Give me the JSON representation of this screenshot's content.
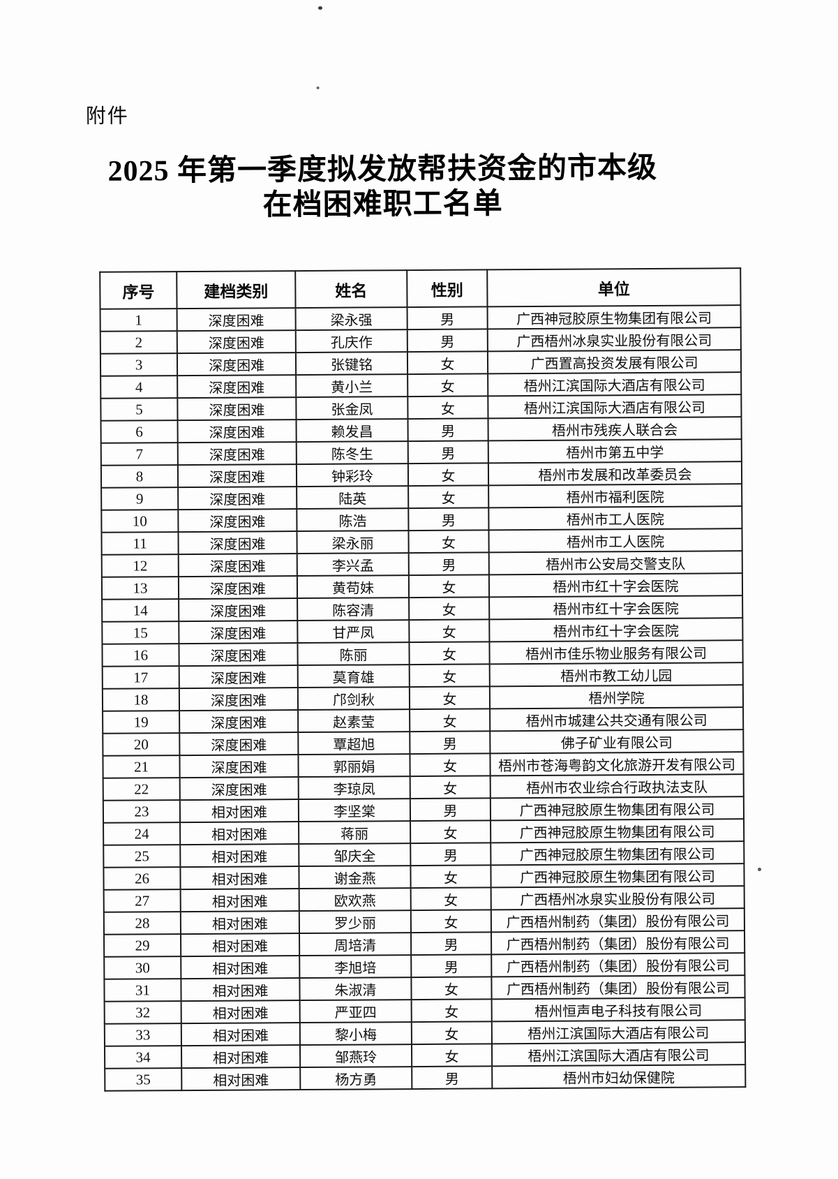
{
  "document": {
    "attachment_label": "附件",
    "title_line1": "2025 年第一季度拟发放帮扶资金的市本级",
    "title_line2": "在档困难职工名单"
  },
  "table": {
    "headers": [
      "序号",
      "建档类别",
      "姓名",
      "性别",
      "单位"
    ],
    "rows": [
      [
        "1",
        "深度困难",
        "梁永强",
        "男",
        "广西神冠胶原生物集团有限公司"
      ],
      [
        "2",
        "深度困难",
        "孔庆作",
        "男",
        "广西梧州冰泉实业股份有限公司"
      ],
      [
        "3",
        "深度困难",
        "张键铭",
        "女",
        "广西置高投资发展有限公司"
      ],
      [
        "4",
        "深度困难",
        "黄小兰",
        "女",
        "梧州江滨国际大酒店有限公司"
      ],
      [
        "5",
        "深度困难",
        "张金凤",
        "女",
        "梧州江滨国际大酒店有限公司"
      ],
      [
        "6",
        "深度困难",
        "赖发昌",
        "男",
        "梧州市残疾人联合会"
      ],
      [
        "7",
        "深度困难",
        "陈冬生",
        "男",
        "梧州市第五中学"
      ],
      [
        "8",
        "深度困难",
        "钟彩玲",
        "女",
        "梧州市发展和改革委员会"
      ],
      [
        "9",
        "深度困难",
        "陆英",
        "女",
        "梧州市福利医院"
      ],
      [
        "10",
        "深度困难",
        "陈浩",
        "男",
        "梧州市工人医院"
      ],
      [
        "11",
        "深度困难",
        "梁永丽",
        "女",
        "梧州市工人医院"
      ],
      [
        "12",
        "深度困难",
        "李兴孟",
        "男",
        "梧州市公安局交警支队"
      ],
      [
        "13",
        "深度困难",
        "黄苟妹",
        "女",
        "梧州市红十字会医院"
      ],
      [
        "14",
        "深度困难",
        "陈容清",
        "女",
        "梧州市红十字会医院"
      ],
      [
        "15",
        "深度困难",
        "甘严凤",
        "女",
        "梧州市红十字会医院"
      ],
      [
        "16",
        "深度困难",
        "陈丽",
        "女",
        "梧州市佳乐物业服务有限公司"
      ],
      [
        "17",
        "深度困难",
        "莫育雄",
        "女",
        "梧州市教工幼儿园"
      ],
      [
        "18",
        "深度困难",
        "邝剑秋",
        "女",
        "梧州学院"
      ],
      [
        "19",
        "深度困难",
        "赵素莹",
        "女",
        "梧州市城建公共交通有限公司"
      ],
      [
        "20",
        "深度困难",
        "覃超旭",
        "男",
        "佛子矿业有限公司"
      ],
      [
        "21",
        "深度困难",
        "郭丽娟",
        "女",
        "梧州市苍海粤韵文化旅游开发有限公司"
      ],
      [
        "22",
        "深度困难",
        "李琼凤",
        "女",
        "梧州市农业综合行政执法支队"
      ],
      [
        "23",
        "相对困难",
        "李坚棠",
        "男",
        "广西神冠胶原生物集团有限公司"
      ],
      [
        "24",
        "相对困难",
        "蒋丽",
        "女",
        "广西神冠胶原生物集团有限公司"
      ],
      [
        "25",
        "相对困难",
        "邹庆全",
        "男",
        "广西神冠胶原生物集团有限公司"
      ],
      [
        "26",
        "相对困难",
        "谢金燕",
        "女",
        "广西神冠胶原生物集团有限公司"
      ],
      [
        "27",
        "相对困难",
        "欧欢燕",
        "女",
        "广西梧州冰泉实业股份有限公司"
      ],
      [
        "28",
        "相对困难",
        "罗少丽",
        "女",
        "广西梧州制药（集团）股份有限公司"
      ],
      [
        "29",
        "相对困难",
        "周培清",
        "男",
        "广西梧州制药（集团）股份有限公司"
      ],
      [
        "30",
        "相对困难",
        "李旭培",
        "男",
        "广西梧州制药（集团）股份有限公司"
      ],
      [
        "31",
        "相对困难",
        "朱淑清",
        "女",
        "广西梧州制药（集团）股份有限公司"
      ],
      [
        "32",
        "相对困难",
        "严亚四",
        "女",
        "梧州恒声电子科技有限公司"
      ],
      [
        "33",
        "相对困难",
        "黎小梅",
        "女",
        "梧州江滨国际大酒店有限公司"
      ],
      [
        "34",
        "相对困难",
        "邹燕玲",
        "女",
        "梧州江滨国际大酒店有限公司"
      ],
      [
        "35",
        "相对困难",
        "杨方勇",
        "男",
        "梧州市妇幼保健院"
      ]
    ]
  }
}
